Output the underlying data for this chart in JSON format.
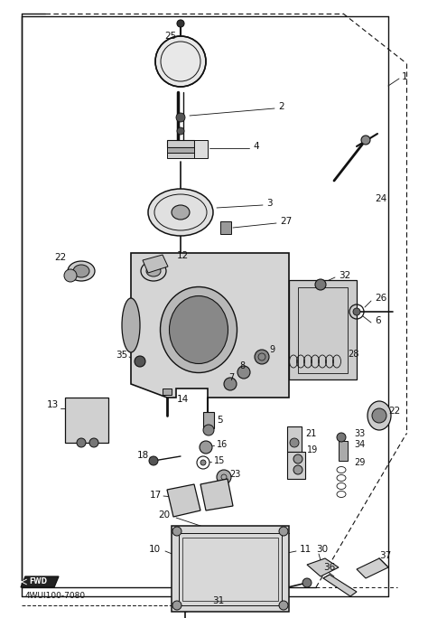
{
  "bg_color": "#ffffff",
  "lc": "#111111",
  "bottom_text": "4WUI100-7080",
  "fig_w": 4.74,
  "fig_h": 6.84,
  "dpi": 100
}
